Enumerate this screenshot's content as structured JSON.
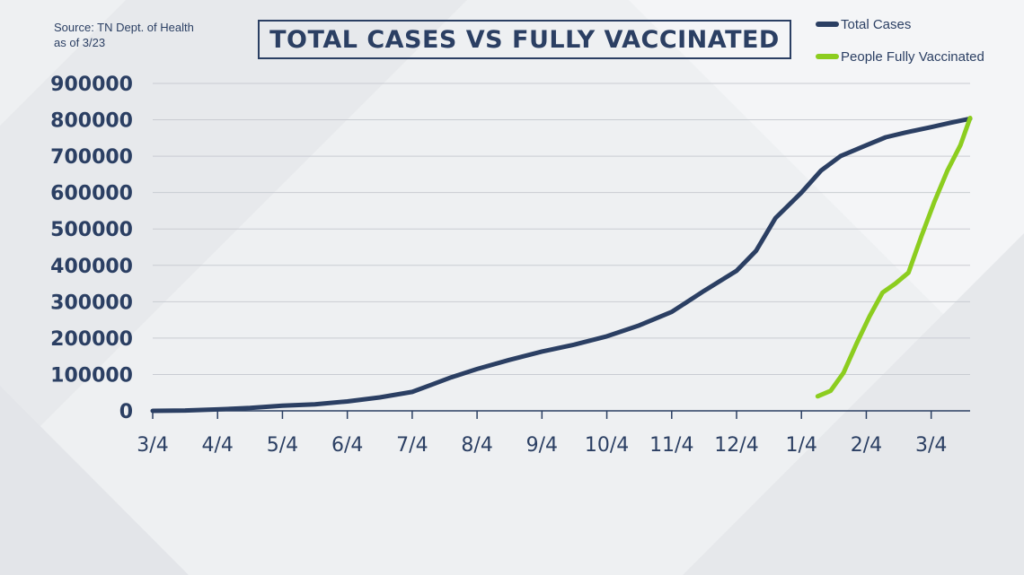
{
  "colors": {
    "text": "#2b3f63",
    "total_cases": "#2b3f63",
    "fully_vaccinated": "#8ccd1f",
    "grid": "#c9ccd2"
  },
  "source": {
    "line1": "Source: TN Dept. of Health",
    "line2": "as of 3/23"
  },
  "chart_data": {
    "type": "line",
    "title": "TOTAL CASES VS FULLY VACCINATED",
    "xlabel": "",
    "ylabel": "",
    "x_tick_labels": [
      "3/4",
      "4/4",
      "5/4",
      "6/4",
      "7/4",
      "8/4",
      "9/4",
      "10/4",
      "11/4",
      "12/4",
      "1/4",
      "2/4",
      "3/4"
    ],
    "y_tick_labels": [
      "0",
      "100000",
      "200000",
      "300000",
      "400000",
      "500000",
      "600000",
      "700000",
      "800000",
      "900000"
    ],
    "ylim": [
      0,
      900000
    ],
    "x_unit": "months since 3/4",
    "xlim": [
      0,
      12.6
    ],
    "grid": true,
    "legend_position": "top-right",
    "series": [
      {
        "name": "Total Cases",
        "x": [
          0,
          0.5,
          1,
          1.5,
          2,
          2.5,
          3,
          3.5,
          4,
          4.3,
          4.6,
          5,
          5.5,
          6,
          6.5,
          7,
          7.5,
          8,
          8.5,
          9,
          9.3,
          9.6,
          10,
          10.3,
          10.6,
          11,
          11.3,
          11.6,
          12,
          12.3,
          12.6
        ],
        "y": [
          0,
          1000,
          4000,
          8000,
          14000,
          18000,
          26000,
          37000,
          52000,
          72000,
          92000,
          115000,
          140000,
          163000,
          182000,
          205000,
          235000,
          272000,
          330000,
          385000,
          440000,
          530000,
          600000,
          660000,
          700000,
          730000,
          752000,
          765000,
          780000,
          792000,
          803000
        ]
      },
      {
        "name": "People Fully Vaccinated",
        "x": [
          10.25,
          10.45,
          10.65,
          10.85,
          11.05,
          11.25,
          11.45,
          11.65,
          11.85,
          12.05,
          12.25,
          12.45,
          12.6
        ],
        "y": [
          40000,
          55000,
          105000,
          185000,
          260000,
          325000,
          350000,
          380000,
          480000,
          575000,
          660000,
          730000,
          805000
        ]
      }
    ]
  }
}
